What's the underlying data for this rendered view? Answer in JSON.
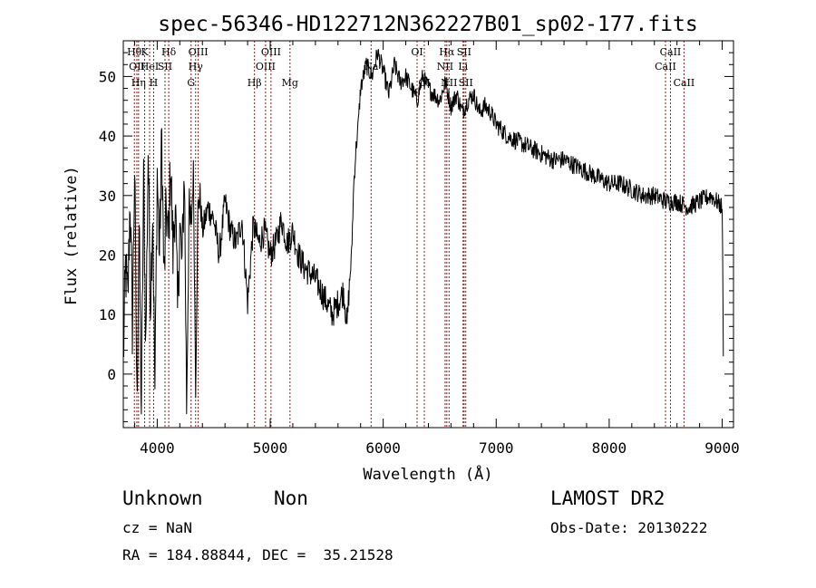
{
  "chart_data": {
    "type": "line",
    "title": "spec-56346-HD122712N362227B01_sp02-177.fits",
    "xlabel": "Wavelength (Å)",
    "ylabel": "Flux (relative)",
    "xlim": [
      3700,
      9100
    ],
    "ylim": [
      -9,
      56
    ],
    "xticks": [
      4000,
      5000,
      6000,
      7000,
      8000,
      9000
    ],
    "yticks": [
      0,
      10,
      20,
      30,
      40,
      50
    ],
    "grid": false,
    "line_color": "#000000",
    "marker_color": "#8b1a1a",
    "series": [
      {
        "x": [
          3700,
          3720,
          3740,
          3760,
          3780,
          3800,
          3820,
          3840,
          3860,
          3880,
          3900,
          3920,
          3940,
          3960,
          3980,
          4000,
          4020,
          4040,
          4060,
          4080,
          4100,
          4120,
          4140,
          4160,
          4180,
          4200,
          4220,
          4240,
          4260,
          4280,
          4300,
          4320,
          4340,
          4360,
          4380,
          4400,
          4450,
          4500,
          4550,
          4600,
          4650,
          4700,
          4750,
          4800,
          4850,
          4900,
          4950,
          5000,
          5050,
          5100,
          5150,
          5200,
          5250,
          5300,
          5350,
          5400,
          5450,
          5500,
          5550,
          5600,
          5650,
          5680,
          5700,
          5720,
          5740,
          5760,
          5780,
          5800,
          5850,
          5900,
          5950,
          6000,
          6050,
          6100,
          6150,
          6200,
          6250,
          6300,
          6350,
          6400,
          6450,
          6500,
          6550,
          6600,
          6650,
          6700,
          6750,
          6800,
          6850,
          6900,
          6950,
          7000,
          7100,
          7200,
          7300,
          7400,
          7500,
          7600,
          7700,
          7800,
          7900,
          8000,
          8100,
          8200,
          8300,
          8400,
          8500,
          8600,
          8700,
          8800,
          8900,
          9000,
          9010
        ],
        "values": [
          2,
          18,
          12,
          30,
          8,
          35,
          -5,
          25,
          -6,
          32,
          5,
          38,
          12,
          28,
          -3,
          34,
          20,
          40,
          15,
          28,
          22,
          36,
          20,
          30,
          10,
          25,
          18,
          35,
          -5,
          26,
          24,
          34,
          -2,
          28,
          30,
          24,
          28,
          26,
          20,
          29,
          24,
          22,
          26,
          12,
          25,
          22,
          24,
          20,
          22,
          26,
          22,
          24,
          20,
          18,
          17,
          16,
          14,
          12,
          10,
          12,
          14,
          8,
          15,
          20,
          32,
          38,
          42,
          48,
          52,
          50,
          54,
          51,
          47,
          52,
          49,
          50,
          48,
          46,
          50,
          48,
          47,
          46,
          49,
          45,
          47,
          44,
          46,
          47,
          44,
          45,
          44,
          42,
          40,
          39,
          38,
          37,
          36,
          36,
          35,
          34,
          33,
          32,
          32,
          31,
          30,
          30,
          29,
          29,
          28,
          29,
          30,
          28,
          3
        ]
      }
    ],
    "line_markers": [
      {
        "x": 3798,
        "label": "Hθ",
        "row": 1
      },
      {
        "x": 3820,
        "label": "OII",
        "row": 2
      },
      {
        "x": 3835,
        "label": "Hη",
        "row": 3
      },
      {
        "x": 3889,
        "label": "K",
        "row": 1
      },
      {
        "x": 3933,
        "label": "HeI",
        "row": 2
      },
      {
        "x": 3968,
        "label": "H",
        "row": 3
      },
      {
        "x": 4069,
        "label": "SII",
        "row": 2
      },
      {
        "x": 4102,
        "label": "Hδ",
        "row": 1
      },
      {
        "x": 4300,
        "label": "G",
        "row": 3
      },
      {
        "x": 4340,
        "label": "Hγ",
        "row": 2
      },
      {
        "x": 4363,
        "label": "OIII",
        "row": 1
      },
      {
        "x": 4861,
        "label": "Hβ",
        "row": 3
      },
      {
        "x": 4959,
        "label": "OIII",
        "row": 2
      },
      {
        "x": 5007,
        "label": "OIII",
        "row": 1
      },
      {
        "x": 5175,
        "label": "Mg",
        "row": 3
      },
      {
        "x": 5893,
        "label": "Na",
        "row": 2
      },
      {
        "x": 6300,
        "label": "OI",
        "row": 1
      },
      {
        "x": 6364,
        "label": "OI",
        "row": 3
      },
      {
        "x": 6548,
        "label": "NII",
        "row": 2
      },
      {
        "x": 6563,
        "label": "Hα",
        "row": 1
      },
      {
        "x": 6583,
        "label": "NII",
        "row": 3
      },
      {
        "x": 6707,
        "label": "Li",
        "row": 2
      },
      {
        "x": 6716,
        "label": "SII",
        "row": 1
      },
      {
        "x": 6731,
        "label": "SII",
        "row": 3
      },
      {
        "x": 8498,
        "label": "CaII",
        "row": 2
      },
      {
        "x": 8542,
        "label": "CaII",
        "row": 1
      },
      {
        "x": 8662,
        "label": "CaII",
        "row": 3
      }
    ]
  },
  "info": {
    "object_class": "Unknown",
    "subclass": "Non",
    "survey": "LAMOST DR2",
    "cz": "cz = NaN",
    "obs_date": "Obs-Date: 20130222",
    "coords": "RA = 184.88844, DEC =  35.21528"
  }
}
